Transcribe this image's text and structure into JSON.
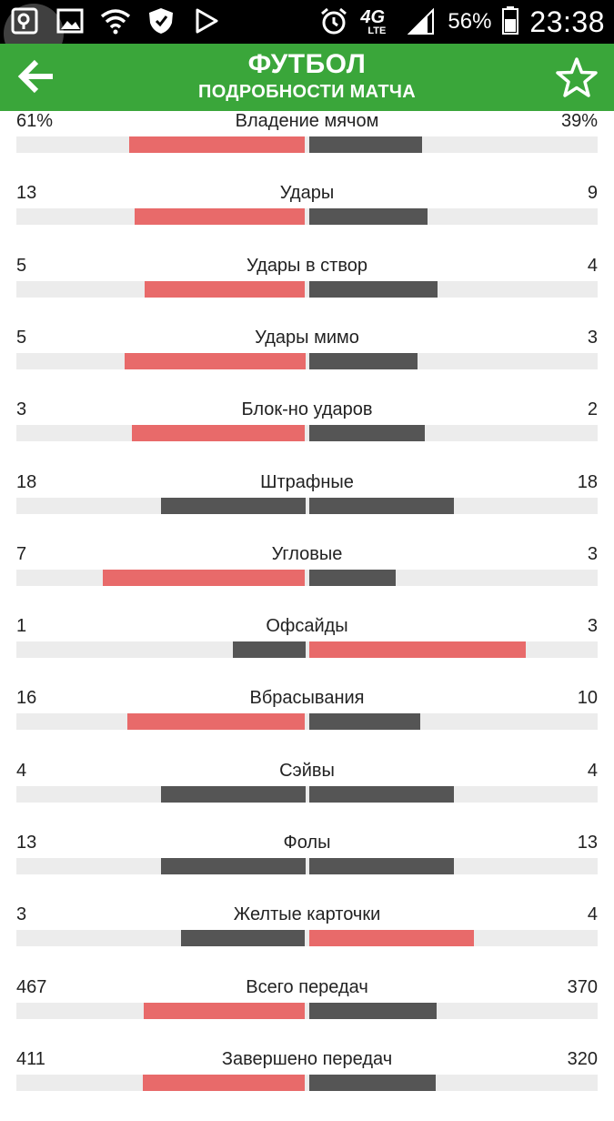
{
  "status_bar": {
    "icons_left": [
      "search-app-icon",
      "gallery-icon",
      "wifi-icon",
      "shield-icon",
      "play-store-icon"
    ],
    "icons_right": [
      "alarm-icon",
      "network-4g-lte-icon",
      "signal-icon"
    ],
    "network": "4G",
    "network_sub": "LTE",
    "battery": "56%",
    "time": "23:38"
  },
  "app_bar": {
    "title": "ФУТБОЛ",
    "subtitle": "ПОДРОБНОСТИ МАТЧА",
    "back_icon": "arrow-back-icon",
    "favorite_icon": "star-outline-icon"
  },
  "colors": {
    "bar_home_win": "#e86a6a",
    "bar_neutral": "#555555",
    "track": "#ececec",
    "header": "#3aa63a"
  },
  "stats": [
    {
      "label": "Владение мячом",
      "left": "61%",
      "right": "39%",
      "left_value": 61,
      "right_value": 39
    },
    {
      "label": "Удары",
      "left": "13",
      "right": "9",
      "left_value": 13,
      "right_value": 9
    },
    {
      "label": "Удары в створ",
      "left": "5",
      "right": "4",
      "left_value": 5,
      "right_value": 4
    },
    {
      "label": "Удары мимо",
      "left": "5",
      "right": "3",
      "left_value": 5,
      "right_value": 3
    },
    {
      "label": "Блок-но ударов",
      "left": "3",
      "right": "2",
      "left_value": 3,
      "right_value": 2
    },
    {
      "label": "Штрафные",
      "left": "18",
      "right": "18",
      "left_value": 18,
      "right_value": 18
    },
    {
      "label": "Угловые",
      "left": "7",
      "right": "3",
      "left_value": 7,
      "right_value": 3
    },
    {
      "label": "Офсайды",
      "left": "1",
      "right": "3",
      "left_value": 1,
      "right_value": 3
    },
    {
      "label": "Вбрасывания",
      "left": "16",
      "right": "10",
      "left_value": 16,
      "right_value": 10
    },
    {
      "label": "Сэйвы",
      "left": "4",
      "right": "4",
      "left_value": 4,
      "right_value": 4
    },
    {
      "label": "Фолы",
      "left": "13",
      "right": "13",
      "left_value": 13,
      "right_value": 13
    },
    {
      "label": "Желтые карточки",
      "left": "3",
      "right": "4",
      "left_value": 3,
      "right_value": 4
    },
    {
      "label": "Всего передач",
      "left": "467",
      "right": "370",
      "left_value": 467,
      "right_value": 370
    },
    {
      "label": "Завершено передач",
      "left": "411",
      "right": "320",
      "left_value": 411,
      "right_value": 320
    }
  ]
}
